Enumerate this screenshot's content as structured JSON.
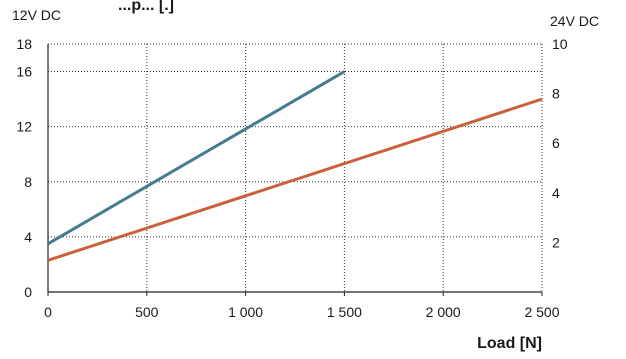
{
  "chart_data": {
    "type": "line",
    "title": "",
    "xlabel": "Load [N]",
    "ylabel_left": "12V DC",
    "ylabel_right": "24V DC",
    "xlim": [
      0,
      2500
    ],
    "ylim_left": [
      0,
      18
    ],
    "ylim_right": [
      0,
      10
    ],
    "x_ticks": [
      {
        "value": 0,
        "label": "0"
      },
      {
        "value": 500,
        "label": "500"
      },
      {
        "value": 1000,
        "label": "1 000"
      },
      {
        "value": 1500,
        "label": "1 500"
      },
      {
        "value": 2000,
        "label": "2 000"
      },
      {
        "value": 2500,
        "label": "2 500"
      }
    ],
    "y_ticks_left": [
      {
        "value": 0,
        "label": "0"
      },
      {
        "value": 4,
        "label": "4"
      },
      {
        "value": 8,
        "label": "8"
      },
      {
        "value": 12,
        "label": "12"
      },
      {
        "value": 16,
        "label": "16"
      },
      {
        "value": 18,
        "label": "18"
      }
    ],
    "y_ticks_right": [
      {
        "value": 2,
        "label": "2"
      },
      {
        "value": 4,
        "label": "4"
      },
      {
        "value": 6,
        "label": "6"
      },
      {
        "value": 8,
        "label": "8"
      },
      {
        "value": 10,
        "label": "10"
      }
    ],
    "grid": true,
    "series": [
      {
        "color": "#457b8f",
        "x": [
          0,
          1500
        ],
        "y": [
          3.5,
          16.0
        ]
      },
      {
        "color": "#c9623a",
        "x": [
          0,
          2500
        ],
        "y": [
          2.3,
          14.0
        ]
      }
    ],
    "cutoff_text": "...p... [.]"
  }
}
